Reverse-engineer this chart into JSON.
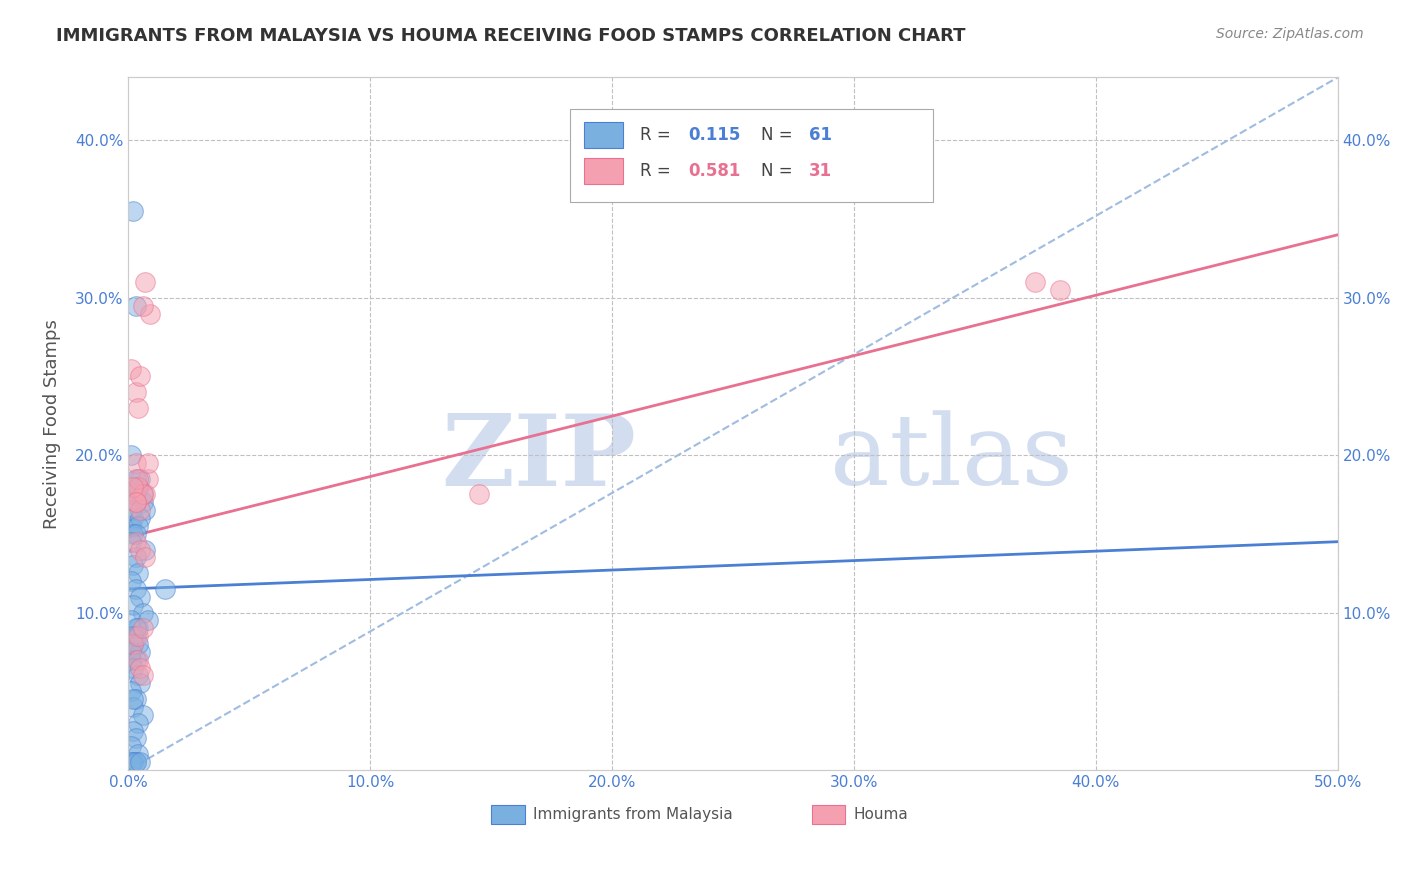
{
  "title": "IMMIGRANTS FROM MALAYSIA VS HOUMA RECEIVING FOOD STAMPS CORRELATION CHART",
  "source": "Source: ZipAtlas.com",
  "ylabel": "Receiving Food Stamps",
  "xlim": [
    0.0,
    0.5
  ],
  "ylim": [
    0.0,
    0.44
  ],
  "x_ticks": [
    0.0,
    0.1,
    0.2,
    0.3,
    0.4,
    0.5
  ],
  "x_tick_labels": [
    "0.0%",
    "10.0%",
    "20.0%",
    "30.0%",
    "40.0%",
    "50.0%"
  ],
  "y_ticks": [
    0.0,
    0.1,
    0.2,
    0.3,
    0.4
  ],
  "y_tick_labels": [
    "",
    "10.0%",
    "20.0%",
    "30.0%",
    "40.0%"
  ],
  "blue_color": "#7ab0e0",
  "pink_color": "#f4a0b0",
  "blue_line_color": "#4a7fd4",
  "pink_line_color": "#e87090",
  "dashed_line_color": "#a0bce0",
  "watermark_zip": "ZIP",
  "watermark_atlas": "atlas",
  "legend_r1_val": "0.115",
  "legend_n1_val": "61",
  "legend_r2_val": "0.581",
  "legend_n2_val": "31",
  "blue_scatter_x": [
    0.002,
    0.003,
    0.001,
    0.005,
    0.004,
    0.003,
    0.006,
    0.007,
    0.002,
    0.001,
    0.003,
    0.004,
    0.002,
    0.006,
    0.003,
    0.001,
    0.005,
    0.004,
    0.002,
    0.003,
    0.001,
    0.007,
    0.003,
    0.002,
    0.004,
    0.001,
    0.003,
    0.005,
    0.002,
    0.006,
    0.001,
    0.004,
    0.003,
    0.002,
    0.005,
    0.001,
    0.008,
    0.003,
    0.002,
    0.004,
    0.001,
    0.003,
    0.002,
    0.004,
    0.005,
    0.001,
    0.003,
    0.002,
    0.006,
    0.004,
    0.002,
    0.015,
    0.003,
    0.001,
    0.004,
    0.003,
    0.002,
    0.001,
    0.003,
    0.005,
    0.002
  ],
  "blue_scatter_y": [
    0.355,
    0.295,
    0.2,
    0.185,
    0.18,
    0.175,
    0.17,
    0.165,
    0.16,
    0.155,
    0.185,
    0.18,
    0.175,
    0.175,
    0.17,
    0.165,
    0.16,
    0.155,
    0.15,
    0.15,
    0.145,
    0.14,
    0.135,
    0.13,
    0.125,
    0.12,
    0.115,
    0.11,
    0.105,
    0.1,
    0.095,
    0.09,
    0.085,
    0.08,
    0.075,
    0.07,
    0.095,
    0.09,
    0.085,
    0.08,
    0.075,
    0.07,
    0.065,
    0.06,
    0.055,
    0.05,
    0.045,
    0.04,
    0.035,
    0.03,
    0.025,
    0.115,
    0.02,
    0.015,
    0.01,
    0.005,
    0.005,
    0.005,
    0.005,
    0.005,
    0.045
  ],
  "pink_scatter_x": [
    0.001,
    0.003,
    0.007,
    0.009,
    0.005,
    0.004,
    0.006,
    0.003,
    0.008,
    0.002,
    0.004,
    0.007,
    0.003,
    0.005,
    0.006,
    0.004,
    0.008,
    0.003,
    0.005,
    0.007,
    0.002,
    0.004,
    0.006,
    0.375,
    0.385,
    0.002,
    0.003,
    0.004,
    0.005,
    0.006,
    0.145
  ],
  "pink_scatter_y": [
    0.255,
    0.24,
    0.31,
    0.29,
    0.25,
    0.23,
    0.295,
    0.195,
    0.185,
    0.175,
    0.18,
    0.175,
    0.17,
    0.165,
    0.175,
    0.185,
    0.195,
    0.145,
    0.14,
    0.135,
    0.08,
    0.085,
    0.09,
    0.31,
    0.305,
    0.18,
    0.17,
    0.07,
    0.065,
    0.06,
    0.175
  ],
  "blue_line_x": [
    0.0,
    0.5
  ],
  "blue_line_y_start": 0.115,
  "blue_line_y_end": 0.145,
  "pink_line_x": [
    0.0,
    0.5
  ],
  "pink_line_y_start": 0.148,
  "pink_line_y_end": 0.34,
  "dashed_line_x": [
    0.0,
    0.5
  ],
  "dashed_line_y_start": 0.0,
  "dashed_line_y_end": 0.44,
  "scatter_size": 200,
  "scatter_alpha": 0.5,
  "grid_color": "#c0c0c0",
  "background_color": "#ffffff",
  "title_color": "#333333",
  "axis_label_color": "#4a7fd4"
}
